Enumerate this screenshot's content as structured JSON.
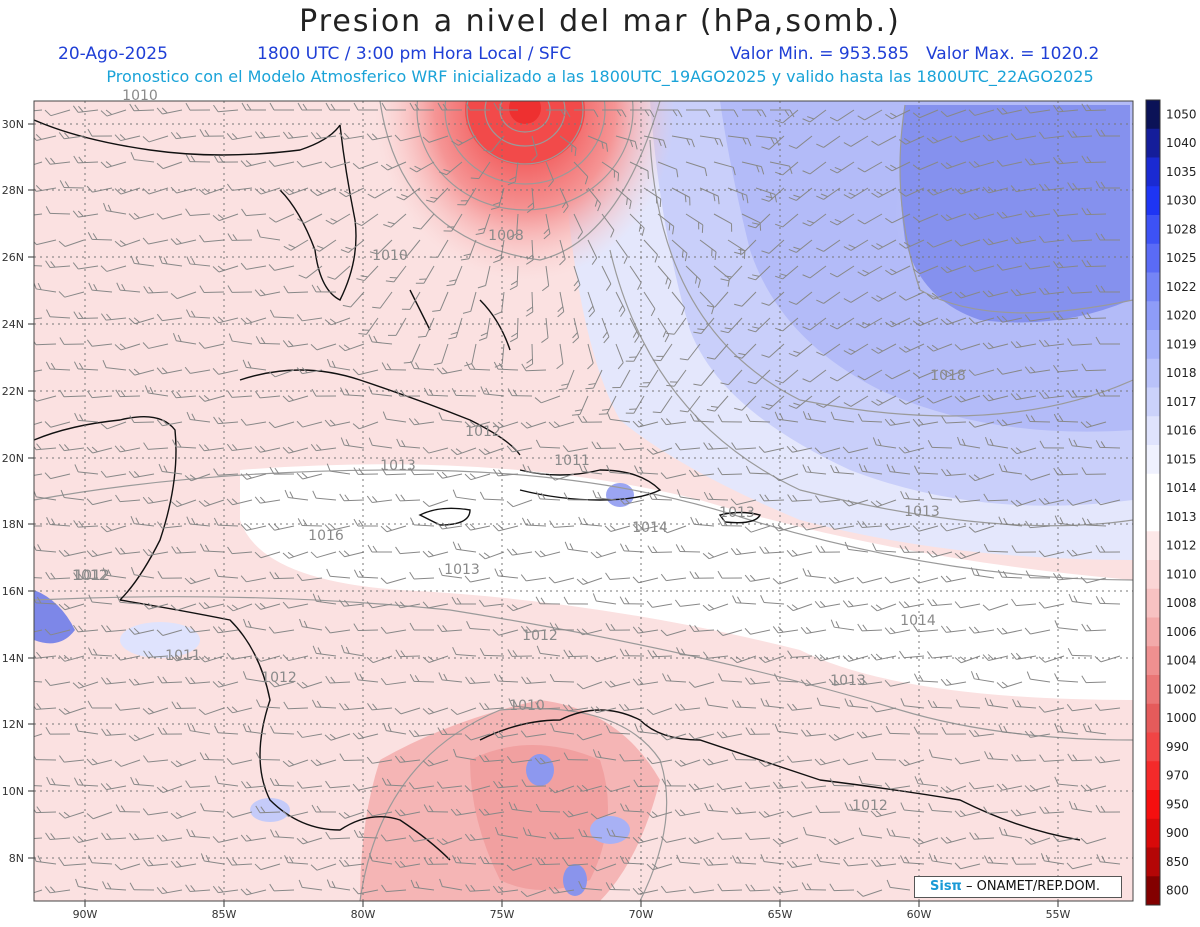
{
  "title": "Presion a nivel del mar (hPa,somb.)",
  "header": {
    "date": "20-Ago-2025",
    "time": "1800 UTC / 3:00 pm Hora Local / SFC",
    "min": "Valor Min. = 953.585",
    "max": "Valor Max. = 1020.2",
    "forecast": "Pronostico con el Modelo Atmosferico WRF inicializado a las 1800UTC_19AGO2025 y valido hasta las  1800UTC_22AGO2025"
  },
  "colorbar": {
    "labels": [
      "1050",
      "1040",
      "1035",
      "1030",
      "1028",
      "1025",
      "1022",
      "1020",
      "1019",
      "1018",
      "1017",
      "1016",
      "1015",
      "1014",
      "1013",
      "1012",
      "1010",
      "1008",
      "1006",
      "1004",
      "1002",
      "1000",
      "990",
      "970",
      "950",
      "900",
      "850",
      "800"
    ],
    "colors": [
      "#0b1257",
      "#141d9a",
      "#1a2ad2",
      "#1e35f4",
      "#3d52f5",
      "#5a6bf6",
      "#7585f6",
      "#8e9cf8",
      "#a4b0f9",
      "#b9c2fa",
      "#cbd2fb",
      "#dfe3fd",
      "#eff1fe",
      "#ffffff",
      "#ffffff",
      "#fde8e8",
      "#fbd6d6",
      "#f7c2c2",
      "#f3aaaa",
      "#ef9090",
      "#ea7676",
      "#e55b5b",
      "#f04545",
      "#f42a2a",
      "#f50f0f",
      "#d80a0a",
      "#b40606",
      "#830000"
    ]
  },
  "axes": {
    "lat_labels": [
      "30N",
      "28N",
      "26N",
      "24N",
      "22N",
      "20N",
      "18N",
      "16N",
      "14N",
      "12N",
      "10N",
      "8N"
    ],
    "lon_labels": [
      "90W",
      "85W",
      "80W",
      "75W",
      "70W",
      "65W",
      "60W",
      "55W"
    ]
  },
  "isobar_labels": [
    "1008",
    "1010",
    "1010",
    "1018",
    "1012",
    "1013",
    "1011",
    "1014",
    "1013",
    "1016",
    "1013",
    "1013",
    "1012",
    "1012",
    "1012",
    "1011",
    "1012",
    "1014",
    "1013",
    "1010",
    "1012"
  ],
  "credit": {
    "logo": "Sisπ",
    "text": "– ONAMET/REP.DOM."
  }
}
